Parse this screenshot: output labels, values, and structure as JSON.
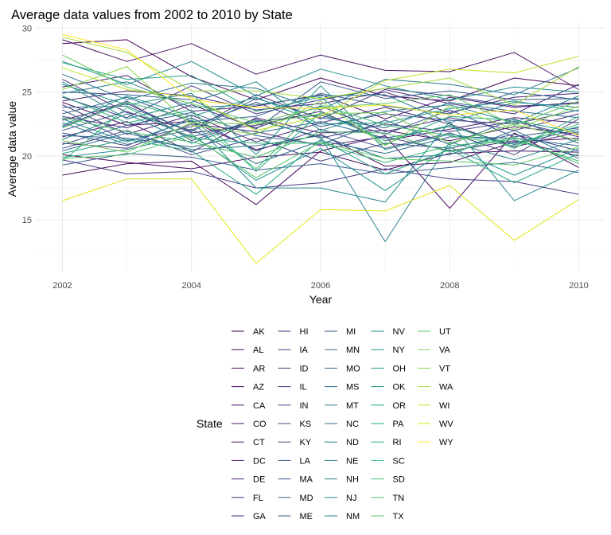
{
  "chart_data": {
    "type": "line",
    "title": "Average data values from 2002 to 2010 by State",
    "xlabel": "Year",
    "ylabel": "Average data value",
    "x": [
      2002,
      2003,
      2004,
      2005,
      2006,
      2007,
      2008,
      2009,
      2010
    ],
    "xlim": [
      2001.6,
      2010.4
    ],
    "ylim": [
      10.9,
      30.4
    ],
    "xticks": [
      "2002",
      "2004",
      "2006",
      "2008",
      "2010"
    ],
    "yticks": [
      "15",
      "20",
      "25",
      "30"
    ],
    "grid": true,
    "legend": {
      "title": "State",
      "position": "bottom"
    },
    "series": [
      {
        "name": "AK",
        "color": "#440154",
        "values": [
          28.8,
          29.1,
          26.2,
          24.4,
          26.1,
          24.7,
          24.3,
          26.1,
          25.5
        ]
      },
      {
        "name": "AL",
        "color": "#450559",
        "values": [
          18.5,
          19.4,
          19.6,
          16.2,
          20.4,
          21.6,
          15.9,
          21.8,
          19.1
        ]
      },
      {
        "name": "AR",
        "color": "#460a5d",
        "values": [
          24.2,
          22.4,
          22.7,
          20.5,
          21.7,
          19.2,
          19.5,
          21.1,
          21.4
        ]
      },
      {
        "name": "AZ",
        "color": "#470e61",
        "values": [
          20.1,
          19.5,
          19.0,
          19.9,
          20.3,
          18.9,
          20.2,
          20.4,
          20.3
        ]
      },
      {
        "name": "CA",
        "color": "#471365",
        "values": [
          29.1,
          27.4,
          28.8,
          26.4,
          27.9,
          26.7,
          26.6,
          28.1,
          25.2
        ]
      },
      {
        "name": "CO",
        "color": "#481769",
        "values": [
          21.5,
          22.7,
          20.3,
          23.0,
          21.8,
          22.0,
          21.2,
          22.3,
          21.7
        ]
      },
      {
        "name": "CT",
        "color": "#481b6d",
        "values": [
          25.4,
          26.3,
          23.5,
          23.9,
          24.8,
          22.9,
          24.6,
          23.8,
          24.2
        ]
      },
      {
        "name": "DC",
        "color": "#481f70",
        "values": [
          22.8,
          24.1,
          21.8,
          22.4,
          23.5,
          21.2,
          22.1,
          23.0,
          22.6
        ]
      },
      {
        "name": "DE",
        "color": "#482374",
        "values": [
          24.0,
          21.7,
          23.2,
          21.1,
          22.6,
          23.8,
          22.5,
          20.7,
          21.9
        ]
      },
      {
        "name": "FL",
        "color": "#482878",
        "values": [
          24.3,
          25.1,
          24.7,
          23.6,
          24.1,
          25.0,
          23.4,
          24.6,
          24.9
        ]
      },
      {
        "name": "GA",
        "color": "#472c7a",
        "values": [
          21.0,
          20.6,
          22.5,
          21.9,
          20.8,
          21.5,
          20.4,
          21.2,
          20.0
        ]
      },
      {
        "name": "HI",
        "color": "#472f7d",
        "values": [
          26.0,
          23.4,
          22.0,
          24.8,
          22.9,
          25.2,
          24.1,
          23.3,
          25.6
        ]
      },
      {
        "name": "IA",
        "color": "#463480",
        "values": [
          23.1,
          22.2,
          24.0,
          22.2,
          23.9,
          21.9,
          23.0,
          22.0,
          23.3
        ]
      },
      {
        "name": "ID",
        "color": "#443983",
        "values": [
          19.7,
          18.6,
          18.8,
          17.5,
          17.9,
          19.0,
          18.2,
          18.0,
          17.0
        ]
      },
      {
        "name": "IL",
        "color": "#433e85",
        "values": [
          24.6,
          23.0,
          25.5,
          23.3,
          24.4,
          25.3,
          24.7,
          23.9,
          24.1
        ]
      },
      {
        "name": "IN",
        "color": "#424086",
        "values": [
          22.3,
          24.3,
          21.2,
          22.9,
          21.4,
          22.5,
          21.9,
          22.7,
          21.5
        ]
      },
      {
        "name": "KS",
        "color": "#404688",
        "values": [
          21.8,
          20.8,
          23.0,
          20.4,
          22.1,
          20.6,
          21.8,
          20.1,
          22.9
        ]
      },
      {
        "name": "KY",
        "color": "#3e4989",
        "values": [
          20.6,
          22.0,
          20.1,
          21.4,
          19.6,
          21.0,
          20.6,
          21.7,
          20.4
        ]
      },
      {
        "name": "LA",
        "color": "#3c4f8a",
        "values": [
          23.6,
          21.2,
          22.3,
          24.2,
          22.3,
          23.3,
          22.8,
          22.5,
          23.6
        ]
      },
      {
        "name": "MA",
        "color": "#3a538b",
        "values": [
          22.0,
          23.5,
          21.5,
          22.7,
          23.2,
          21.7,
          23.6,
          21.5,
          22.2
        ]
      },
      {
        "name": "MD",
        "color": "#38588c",
        "values": [
          25.0,
          24.8,
          24.4,
          22.1,
          25.8,
          24.5,
          25.1,
          24.4,
          24.5
        ]
      },
      {
        "name": "ME",
        "color": "#365c8d",
        "values": [
          19.3,
          20.2,
          19.9,
          18.9,
          19.4,
          18.6,
          19.1,
          19.5,
          18.7
        ]
      },
      {
        "name": "MI",
        "color": "#34608d",
        "values": [
          20.9,
          22.4,
          23.4,
          21.6,
          20.9,
          22.8,
          20.9,
          22.9,
          21.0
        ]
      },
      {
        "name": "MN",
        "color": "#32648e",
        "values": [
          23.3,
          24.6,
          22.7,
          23.1,
          24.9,
          23.9,
          23.3,
          25.0,
          24.4
        ]
      },
      {
        "name": "MO",
        "color": "#31688e",
        "values": [
          21.6,
          21.4,
          20.7,
          21.8,
          22.7,
          21.4,
          22.3,
          20.9,
          22.1
        ]
      },
      {
        "name": "MS",
        "color": "#2f6b8e",
        "values": [
          22.6,
          20.9,
          22.1,
          19.4,
          21.2,
          20.2,
          21.5,
          21.4,
          20.8
        ]
      },
      {
        "name": "MT",
        "color": "#2d708e",
        "values": [
          23.8,
          23.9,
          21.9,
          24.5,
          23.0,
          22.2,
          24.2,
          23.5,
          23.0
        ]
      },
      {
        "name": "NC",
        "color": "#2c728e",
        "values": [
          20.4,
          21.8,
          20.5,
          20.8,
          21.6,
          19.8,
          20.1,
          22.0,
          19.8
        ]
      },
      {
        "name": "ND",
        "color": "#2a788e",
        "values": [
          26.4,
          24.4,
          25.7,
          25.3,
          23.6,
          26.0,
          25.6,
          24.8,
          26.9
        ]
      },
      {
        "name": "NE",
        "color": "#287c8e",
        "values": [
          24.9,
          25.8,
          23.8,
          24.0,
          24.7,
          24.8,
          22.6,
          24.2,
          23.8
        ]
      },
      {
        "name": "NH",
        "color": "#26828e",
        "values": [
          21.3,
          23.3,
          21.0,
          22.8,
          21.5,
          13.3,
          21.1,
          19.7,
          21.3
        ]
      },
      {
        "name": "NJ",
        "color": "#25858e",
        "values": [
          25.8,
          22.9,
          24.2,
          25.8,
          22.0,
          23.5,
          24.0,
          22.6,
          24.7
        ]
      },
      {
        "name": "NM",
        "color": "#23898e",
        "values": [
          22.9,
          21.1,
          22.8,
          17.5,
          17.5,
          16.4,
          22.7,
          16.5,
          18.9
        ]
      },
      {
        "name": "NV",
        "color": "#218e8d",
        "values": [
          27.4,
          25.6,
          27.4,
          24.7,
          26.8,
          25.5,
          24.4,
          25.4,
          25.0
        ]
      },
      {
        "name": "NY",
        "color": "#20928c",
        "values": [
          19.9,
          20.5,
          21.7,
          18.1,
          20.6,
          17.3,
          20.7,
          18.5,
          20.6
        ]
      },
      {
        "name": "OH",
        "color": "#1f968b",
        "values": [
          25.6,
          24.0,
          24.9,
          20.1,
          25.5,
          20.5,
          21.7,
          21.0,
          22.3
        ]
      },
      {
        "name": "OK",
        "color": "#1f9a8a",
        "values": [
          22.4,
          24.7,
          23.1,
          24.6,
          22.5,
          22.6,
          23.7,
          24.3,
          23.5
        ]
      },
      {
        "name": "OR",
        "color": "#20a386",
        "values": [
          27.3,
          26.0,
          26.3,
          23.5,
          24.6,
          20.9,
          23.1,
          22.8,
          21.8
        ]
      },
      {
        "name": "PA",
        "color": "#22a884",
        "values": [
          20.2,
          21.3,
          20.4,
          17.0,
          21.3,
          18.6,
          20.5,
          17.9,
          20.2
        ]
      },
      {
        "name": "RI",
        "color": "#29af7f",
        "values": [
          24.7,
          22.6,
          23.6,
          18.8,
          23.4,
          21.2,
          22.4,
          20.6,
          23.1
        ]
      },
      {
        "name": "SC",
        "color": "#35b779",
        "values": [
          19.6,
          23.8,
          21.4,
          21.0,
          21.0,
          19.5,
          20.8,
          21.3,
          19.6
        ]
      },
      {
        "name": "SD",
        "color": "#3fbc73",
        "values": [
          22.2,
          24.2,
          22.9,
          19.0,
          24.0,
          22.4,
          21.6,
          20.8,
          22.5
        ]
      },
      {
        "name": "TN",
        "color": "#48c16e",
        "values": [
          23.0,
          21.9,
          21.1,
          19.9,
          21.9,
          21.8,
          20.3,
          21.5,
          19.4
        ]
      },
      {
        "name": "TX",
        "color": "#56c667",
        "values": [
          19.8,
          20.1,
          21.6,
          18.3,
          21.1,
          19.8,
          19.6,
          19.3,
          20.7
        ]
      },
      {
        "name": "UT",
        "color": "#62cb5f",
        "values": [
          27.9,
          25.4,
          24.1,
          22.6,
          23.8,
          24.1,
          24.8,
          22.4,
          24.3
        ]
      },
      {
        "name": "VA",
        "color": "#75d054",
        "values": [
          21.2,
          20.3,
          22.6,
          22.5,
          23.3,
          23.4,
          21.0,
          22.5,
          21.2
        ]
      },
      {
        "name": "VT",
        "color": "#86d549",
        "values": [
          25.2,
          27.0,
          22.4,
          21.7,
          24.3,
          20.8,
          23.9,
          22.1,
          23.9
        ]
      },
      {
        "name": "WA",
        "color": "#a2da37",
        "values": [
          29.3,
          28.1,
          25.1,
          25.1,
          24.5,
          25.3,
          26.1,
          24.0,
          27.0
        ]
      },
      {
        "name": "WI",
        "color": "#c2df23",
        "values": [
          26.9,
          25.2,
          24.6,
          22.0,
          23.1,
          25.9,
          26.8,
          26.5,
          27.8
        ]
      },
      {
        "name": "WV",
        "color": "#e2e418",
        "values": [
          16.5,
          18.2,
          18.2,
          11.6,
          15.8,
          15.7,
          17.7,
          13.4,
          16.6
        ]
      },
      {
        "name": "WY",
        "color": "#fde725",
        "values": [
          29.5,
          28.3,
          24.4,
          23.8,
          23.7,
          24.0,
          23.2,
          23.6,
          21.6
        ]
      }
    ]
  }
}
